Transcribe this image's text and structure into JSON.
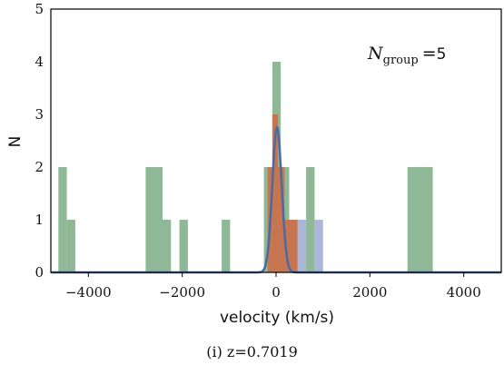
{
  "chart_data": {
    "type": "bar",
    "xlabel": "velocity (km/s)",
    "ylabel": "N",
    "xlim": [
      -4800,
      4800
    ],
    "ylim": [
      0,
      5
    ],
    "x_ticks": [
      -4000,
      -2000,
      0,
      2000,
      4000
    ],
    "x_tick_labels": [
      "−4000",
      "−2000",
      "0",
      "2000",
      "4000"
    ],
    "y_ticks": [
      0,
      1,
      2,
      3,
      4,
      5
    ],
    "y_tick_labels": [
      "0",
      "1",
      "2",
      "3",
      "4",
      "5"
    ],
    "grid": false,
    "annotation": {
      "symbol": "N",
      "subscript": "group",
      "equals": "=",
      "value": "5"
    },
    "series": [
      {
        "color": "#8fb996",
        "bins": [
          {
            "x0": -4640,
            "x1": -4460,
            "count": 2
          },
          {
            "x0": -4460,
            "x1": -4280,
            "count": 1
          },
          {
            "x0": -2780,
            "x1": -2420,
            "count": 2
          },
          {
            "x0": -2420,
            "x1": -2240,
            "count": 1
          },
          {
            "x0": -2060,
            "x1": -1880,
            "count": 1
          },
          {
            "x0": -1160,
            "x1": -980,
            "count": 1
          },
          {
            "x0": -260,
            "x1": -80,
            "count": 2
          },
          {
            "x0": -80,
            "x1": 100,
            "count": 4
          },
          {
            "x0": 100,
            "x1": 280,
            "count": 2
          },
          {
            "x0": 640,
            "x1": 820,
            "count": 2
          },
          {
            "x0": 2800,
            "x1": 3340,
            "count": 2
          }
        ]
      },
      {
        "color": "#aab7d8",
        "bins": [
          {
            "x0": 460,
            "x1": 640,
            "count": 1
          },
          {
            "x0": 820,
            "x1": 1000,
            "count": 1
          }
        ]
      },
      {
        "color": "#c7754f",
        "bins": [
          {
            "x0": -180,
            "x1": -80,
            "count": 2
          },
          {
            "x0": -80,
            "x1": 40,
            "count": 3
          },
          {
            "x0": 40,
            "x1": 180,
            "count": 2
          },
          {
            "x0": 180,
            "x1": 460,
            "count": 1
          }
        ]
      },
      {
        "type": "line",
        "color": "#4a6aa5",
        "curve": "gaussian",
        "mu": 20,
        "sigma": 100,
        "amplitude": 2.75
      }
    ]
  },
  "caption": "(i) z=0.7019"
}
